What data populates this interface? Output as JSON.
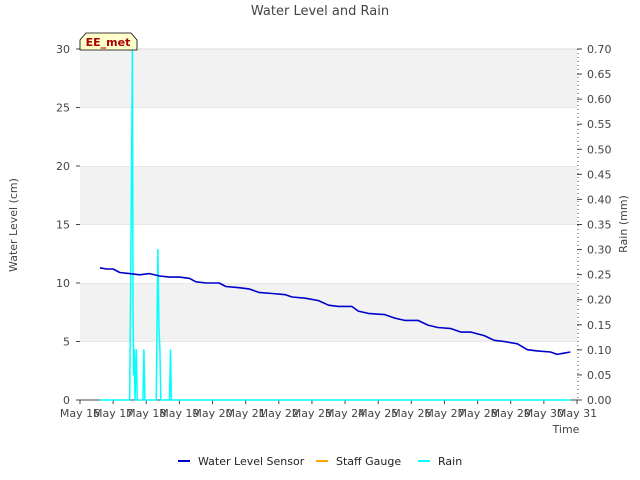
{
  "chart_data": {
    "type": "line",
    "title": "Water Level and Rain",
    "xlabel": "Time",
    "ylabel_left": "Water Level (cm)",
    "ylabel_right": "Rain (mm)",
    "station_label": "EE_met",
    "x_tick_labels": [
      "May 16",
      "May 17",
      "May 18",
      "May 19",
      "May 20",
      "May 21",
      "May 22",
      "May 23",
      "May 24",
      "May 25",
      "May 26",
      "May 27",
      "May 28",
      "May 29",
      "May 30",
      "May 31"
    ],
    "xlim": [
      0,
      15
    ],
    "ylim_left": [
      0,
      30
    ],
    "y_ticks_left": [
      "0",
      "5",
      "10",
      "15",
      "20",
      "25",
      "30"
    ],
    "ylim_right": [
      0,
      0.7
    ],
    "y_ticks_right": [
      "0.00",
      "0.05",
      "0.10",
      "0.15",
      "0.20",
      "0.25",
      "0.30",
      "0.35",
      "0.40",
      "0.45",
      "0.50",
      "0.55",
      "0.60",
      "0.65",
      "0.70"
    ],
    "grid_bands": true,
    "series": [
      {
        "name": "Water Level Sensor",
        "axis": "left",
        "color": "#0000cc",
        "points": [
          [
            0.6,
            11.3
          ],
          [
            0.8,
            11.2
          ],
          [
            1.0,
            11.2
          ],
          [
            1.2,
            10.9
          ],
          [
            1.5,
            10.8
          ],
          [
            1.8,
            10.7
          ],
          [
            2.1,
            10.8
          ],
          [
            2.4,
            10.6
          ],
          [
            2.7,
            10.5
          ],
          [
            3.0,
            10.5
          ],
          [
            3.3,
            10.4
          ],
          [
            3.5,
            10.1
          ],
          [
            3.8,
            10.0
          ],
          [
            4.2,
            10.0
          ],
          [
            4.4,
            9.7
          ],
          [
            4.8,
            9.6
          ],
          [
            5.1,
            9.5
          ],
          [
            5.4,
            9.2
          ],
          [
            5.8,
            9.1
          ],
          [
            6.2,
            9.0
          ],
          [
            6.4,
            8.8
          ],
          [
            6.8,
            8.7
          ],
          [
            7.2,
            8.5
          ],
          [
            7.5,
            8.1
          ],
          [
            7.8,
            8.0
          ],
          [
            8.2,
            8.0
          ],
          [
            8.4,
            7.6
          ],
          [
            8.7,
            7.4
          ],
          [
            9.2,
            7.3
          ],
          [
            9.5,
            7.0
          ],
          [
            9.8,
            6.8
          ],
          [
            10.2,
            6.8
          ],
          [
            10.5,
            6.4
          ],
          [
            10.8,
            6.2
          ],
          [
            11.2,
            6.1
          ],
          [
            11.5,
            5.8
          ],
          [
            11.8,
            5.8
          ],
          [
            12.2,
            5.5
          ],
          [
            12.5,
            5.1
          ],
          [
            12.8,
            5.0
          ],
          [
            13.2,
            4.8
          ],
          [
            13.5,
            4.3
          ],
          [
            13.8,
            4.2
          ],
          [
            14.2,
            4.1
          ],
          [
            14.4,
            3.9
          ],
          [
            14.6,
            4.0
          ],
          [
            14.8,
            4.1
          ]
        ]
      },
      {
        "name": "Staff Gauge",
        "axis": "left",
        "color": "#ffa500",
        "points": []
      },
      {
        "name": "Rain",
        "axis": "right",
        "color": "#00ffff",
        "points": [
          [
            0.6,
            0
          ],
          [
            1.5,
            0
          ],
          [
            1.56,
            0.5
          ],
          [
            1.58,
            0.7
          ],
          [
            1.6,
            0.2
          ],
          [
            1.62,
            0.05
          ],
          [
            1.64,
            0.1
          ],
          [
            1.66,
            0
          ],
          [
            1.7,
            0.1
          ],
          [
            1.73,
            0
          ],
          [
            1.9,
            0
          ],
          [
            1.93,
            0.1
          ],
          [
            1.96,
            0
          ],
          [
            2.3,
            0
          ],
          [
            2.35,
            0.3
          ],
          [
            2.38,
            0.15
          ],
          [
            2.41,
            0.1
          ],
          [
            2.44,
            0
          ],
          [
            2.7,
            0
          ],
          [
            2.73,
            0.1
          ],
          [
            2.76,
            0
          ],
          [
            14.8,
            0
          ]
        ]
      }
    ],
    "legend_position": "bottom-center"
  }
}
